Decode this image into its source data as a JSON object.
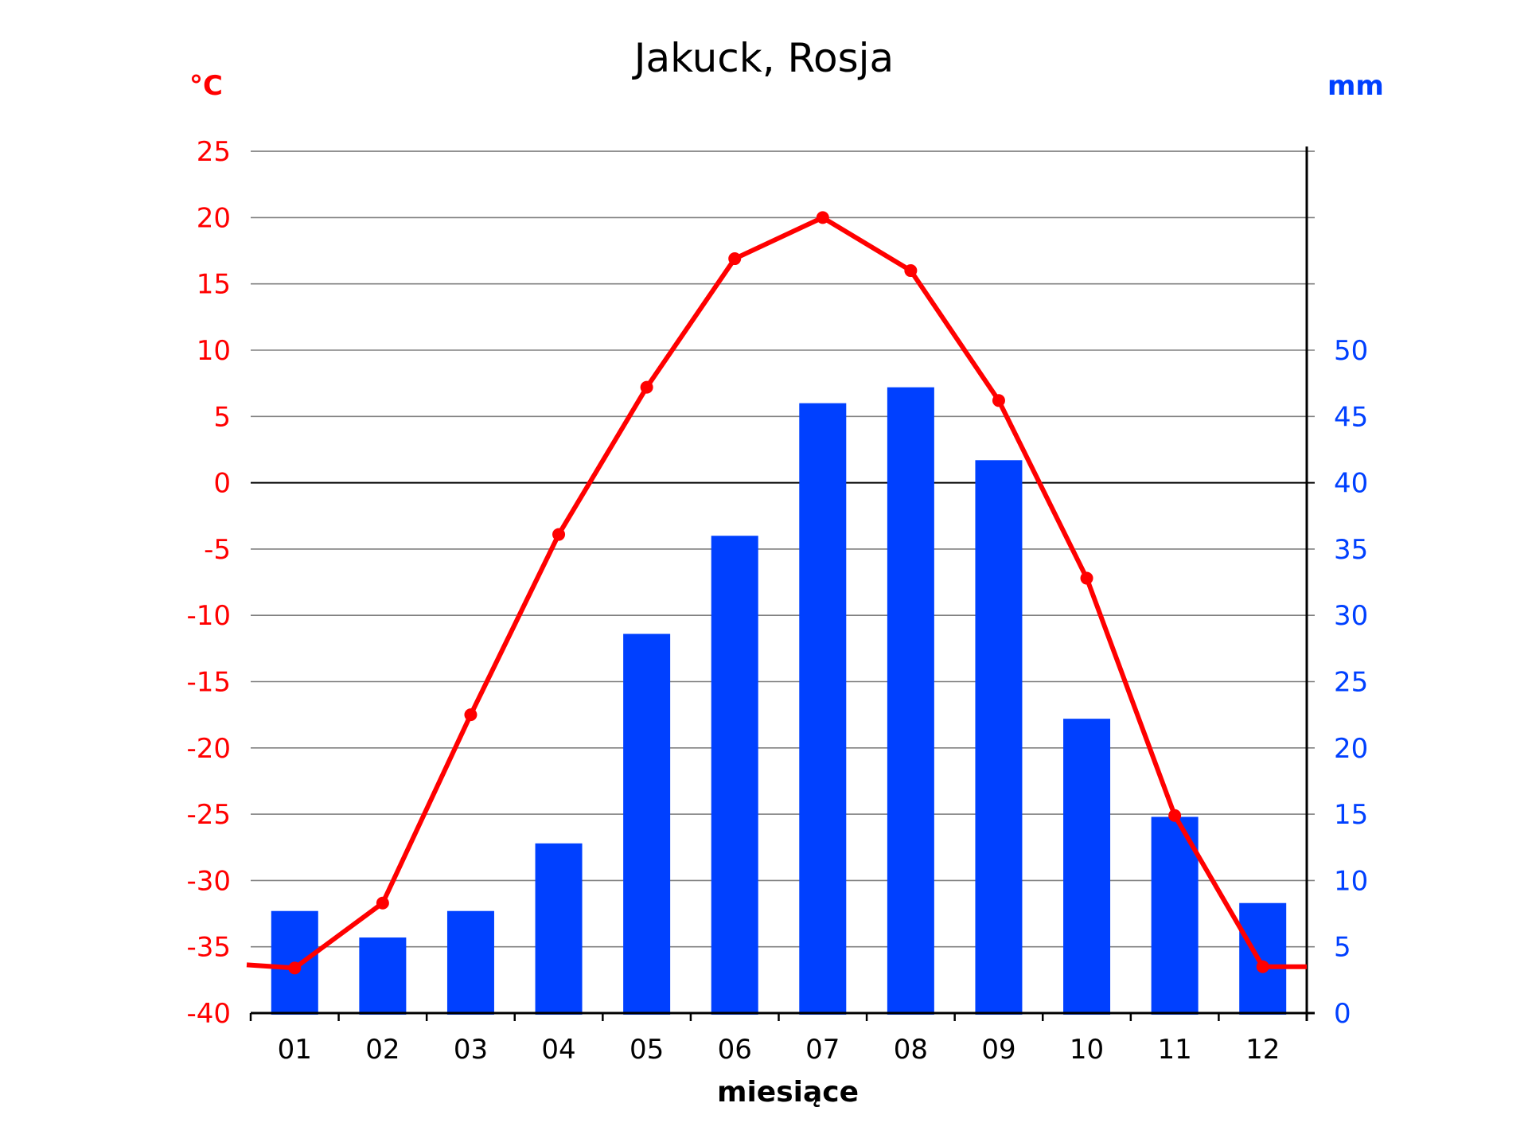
{
  "title": "Jakuck, Rosja",
  "left_axis_unit": "°C",
  "right_axis_unit": "mm",
  "x_axis_label": "miesiące",
  "colors": {
    "temperature": "#ff0000",
    "precipitation": "#0040ff",
    "grid": "#808080",
    "axis": "#000000"
  },
  "chart_data": {
    "type": "bar+line",
    "title": "Jakuck, Rosja",
    "xlabel": "miesiące",
    "ylabel_left": "°C",
    "ylabel_right": "mm",
    "categories": [
      "01",
      "02",
      "03",
      "04",
      "05",
      "06",
      "07",
      "08",
      "09",
      "10",
      "11",
      "12"
    ],
    "series": [
      {
        "name": "temperature",
        "type": "line",
        "axis": "left",
        "unit": "°C",
        "color": "#ff0000",
        "values": [
          -36.6,
          -31.7,
          -17.5,
          -3.9,
          7.2,
          16.9,
          20.0,
          16.0,
          6.2,
          -7.2,
          -25.1,
          -36.5
        ]
      },
      {
        "name": "precipitation",
        "type": "bar",
        "axis": "right",
        "unit": "mm",
        "color": "#0040ff",
        "values": [
          7.7,
          5.7,
          7.7,
          12.8,
          28.6,
          36.0,
          46.0,
          47.2,
          41.7,
          22.2,
          14.8,
          8.3
        ]
      }
    ],
    "left_axis": {
      "ylim": [
        -40,
        25
      ],
      "ticks": [
        25,
        20,
        15,
        10,
        5,
        0,
        -5,
        -10,
        -15,
        -20,
        -25,
        -30,
        -35,
        -40
      ]
    },
    "right_axis": {
      "ylim": [
        0,
        65
      ],
      "ticks": [
        50,
        45,
        40,
        35,
        30,
        25,
        20,
        15,
        10,
        5,
        0
      ]
    },
    "grid": true,
    "legend": "none"
  }
}
